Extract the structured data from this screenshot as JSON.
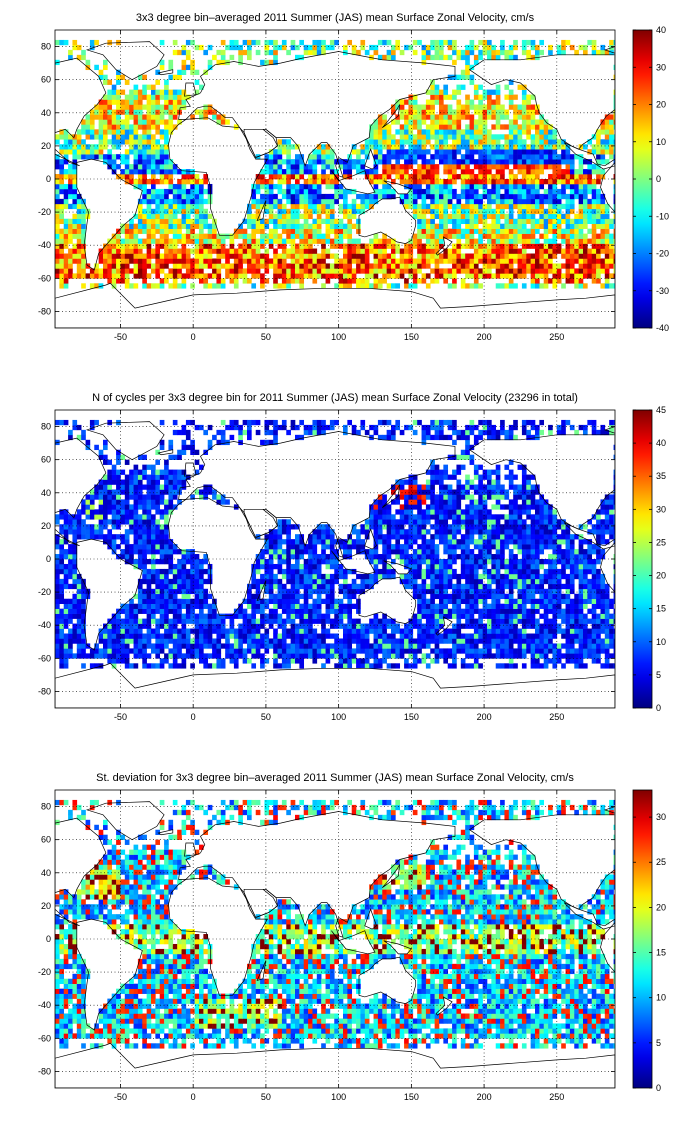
{
  "chart_data": [
    {
      "type": "heatmap",
      "title": "3x3 degree bin–averaged 2011 Summer (JAS) mean Surface Zonal Velocity, cm/s",
      "xlabel": "",
      "ylabel": "",
      "xlim": [
        -95,
        290
      ],
      "ylim": [
        -90,
        90
      ],
      "xticks": [
        -50,
        0,
        50,
        100,
        150,
        200,
        250
      ],
      "yticks": [
        -80,
        -60,
        -40,
        -20,
        0,
        20,
        40,
        60,
        80
      ],
      "grid": true,
      "bin_size_deg": 3,
      "colorbar": {
        "min": -40,
        "max": 40,
        "ticks": [
          -40,
          -30,
          -20,
          -10,
          0,
          10,
          20,
          30,
          40
        ],
        "colormap": "jet"
      },
      "colormap_colors": [
        "#00008f",
        "#0000ff",
        "#00ffff",
        "#ffff00",
        "#ff0000",
        "#800000"
      ],
      "field": "zonal_velocity"
    },
    {
      "type": "heatmap",
      "title": "N of cycles per 3x3 degree bin for 2011 Summer (JAS) mean Surface Zonal Velocity (23296 in total)",
      "xlabel": "",
      "ylabel": "",
      "xlim": [
        -95,
        290
      ],
      "ylim": [
        -90,
        90
      ],
      "xticks": [
        -50,
        0,
        50,
        100,
        150,
        200,
        250
      ],
      "yticks": [
        -80,
        -60,
        -40,
        -20,
        0,
        20,
        40,
        60,
        80
      ],
      "grid": true,
      "bin_size_deg": 3,
      "total_cycles": 23296,
      "colorbar": {
        "min": 0,
        "max": 45,
        "ticks": [
          0,
          5,
          10,
          15,
          20,
          25,
          30,
          35,
          40,
          45
        ],
        "colormap": "jet"
      },
      "colormap_colors": [
        "#00008f",
        "#0000ff",
        "#00ffff",
        "#ffff00",
        "#ff0000",
        "#800000"
      ],
      "field": "n_cycles"
    },
    {
      "type": "heatmap",
      "title": "St. deviation for 3x3 degree bin–averaged 2011 Summer (JAS) mean Surface Zonal Velocity, cm/s",
      "xlabel": "",
      "ylabel": "",
      "xlim": [
        -95,
        290
      ],
      "ylim": [
        -90,
        90
      ],
      "xticks": [
        -50,
        0,
        50,
        100,
        150,
        200,
        250
      ],
      "yticks": [
        -80,
        -60,
        -40,
        -20,
        0,
        20,
        40,
        60,
        80
      ],
      "grid": true,
      "bin_size_deg": 3,
      "colorbar": {
        "min": 0,
        "max": 33,
        "ticks": [
          0,
          5,
          10,
          15,
          20,
          25,
          30
        ],
        "colormap": "jet"
      },
      "colormap_colors": [
        "#00008f",
        "#0000ff",
        "#00ffff",
        "#ffff00",
        "#ff0000",
        "#800000"
      ],
      "field": "std_dev"
    }
  ]
}
